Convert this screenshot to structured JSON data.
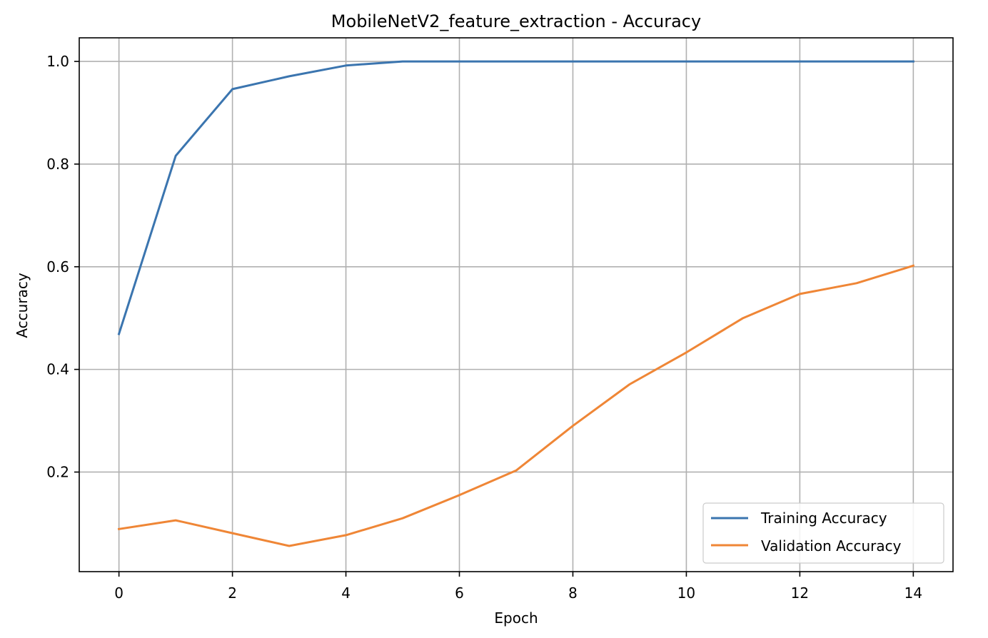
{
  "chart_data": {
    "type": "line",
    "title": "MobileNetV2_feature_extraction - Accuracy",
    "xlabel": "Epoch",
    "ylabel": "Accuracy",
    "xlim": [
      -0.7,
      14.7
    ],
    "ylim": [
      0.006,
      1.046
    ],
    "xticks": [
      0,
      2,
      4,
      6,
      8,
      10,
      12,
      14
    ],
    "xtick_labels": [
      "0",
      "2",
      "4",
      "6",
      "8",
      "10",
      "12",
      "14"
    ],
    "yticks": [
      0.2,
      0.4,
      0.6,
      0.8,
      1.0
    ],
    "ytick_labels": [
      "0.2",
      "0.4",
      "0.6",
      "0.8",
      "1.0"
    ],
    "grid": true,
    "legend_position": "lower-right",
    "x": [
      0,
      1,
      2,
      3,
      4,
      5,
      6,
      7,
      8,
      9,
      10,
      11,
      12,
      13,
      14
    ],
    "series": [
      {
        "name": "Training Accuracy",
        "color": "#3b75af",
        "values": [
          0.469,
          0.816,
          0.946,
          0.971,
          0.992,
          1.0,
          1.0,
          1.0,
          1.0,
          1.0,
          1.0,
          1.0,
          1.0,
          1.0,
          1.0
        ]
      },
      {
        "name": "Validation Accuracy",
        "color": "#ef8636",
        "values": [
          0.089,
          0.106,
          0.081,
          0.056,
          0.077,
          0.11,
          0.155,
          0.203,
          0.29,
          0.371,
          0.433,
          0.5,
          0.547,
          0.568,
          0.602
        ]
      }
    ]
  }
}
